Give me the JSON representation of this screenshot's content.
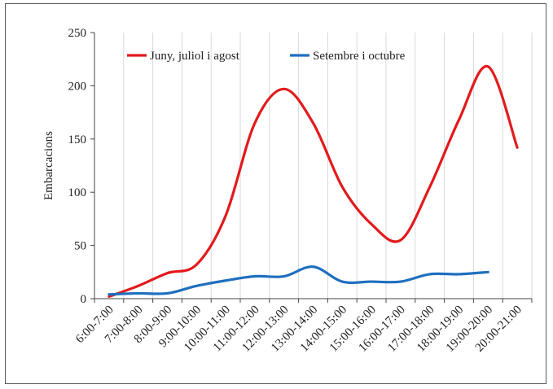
{
  "chart_data": {
    "type": "line",
    "title": "",
    "xlabel": "",
    "ylabel": "Embarcacions",
    "ylim": [
      0,
      250
    ],
    "yticks": [
      0,
      50,
      100,
      150,
      200,
      250
    ],
    "grid": "vertical",
    "legend": "top",
    "categories": [
      "6:00-7:00",
      "7:00-8:00",
      "8:00-9:00",
      "9:00-10:00",
      "10:00-11:00",
      "11:00-12:00",
      "12:00-13:00",
      "13:00-14:00",
      "14:00-15:00",
      "15:00-16:00",
      "16:00-17:00",
      "17:00-18:00",
      "18:00-19:00",
      "19:00-20:00",
      "20:00-21:00"
    ],
    "series": [
      {
        "name": "Juny, juliol i agost",
        "color": "#e31a1c",
        "values": [
          2,
          12,
          24,
          32,
          78,
          165,
          197,
          165,
          105,
          70,
          55,
          105,
          168,
          218,
          142
        ]
      },
      {
        "name": "Setembre i octubre",
        "color": "#1f6fbf",
        "values": [
          4,
          5,
          5,
          12,
          17,
          21,
          21,
          30,
          16,
          16,
          16,
          23,
          23,
          25,
          null
        ]
      }
    ]
  }
}
